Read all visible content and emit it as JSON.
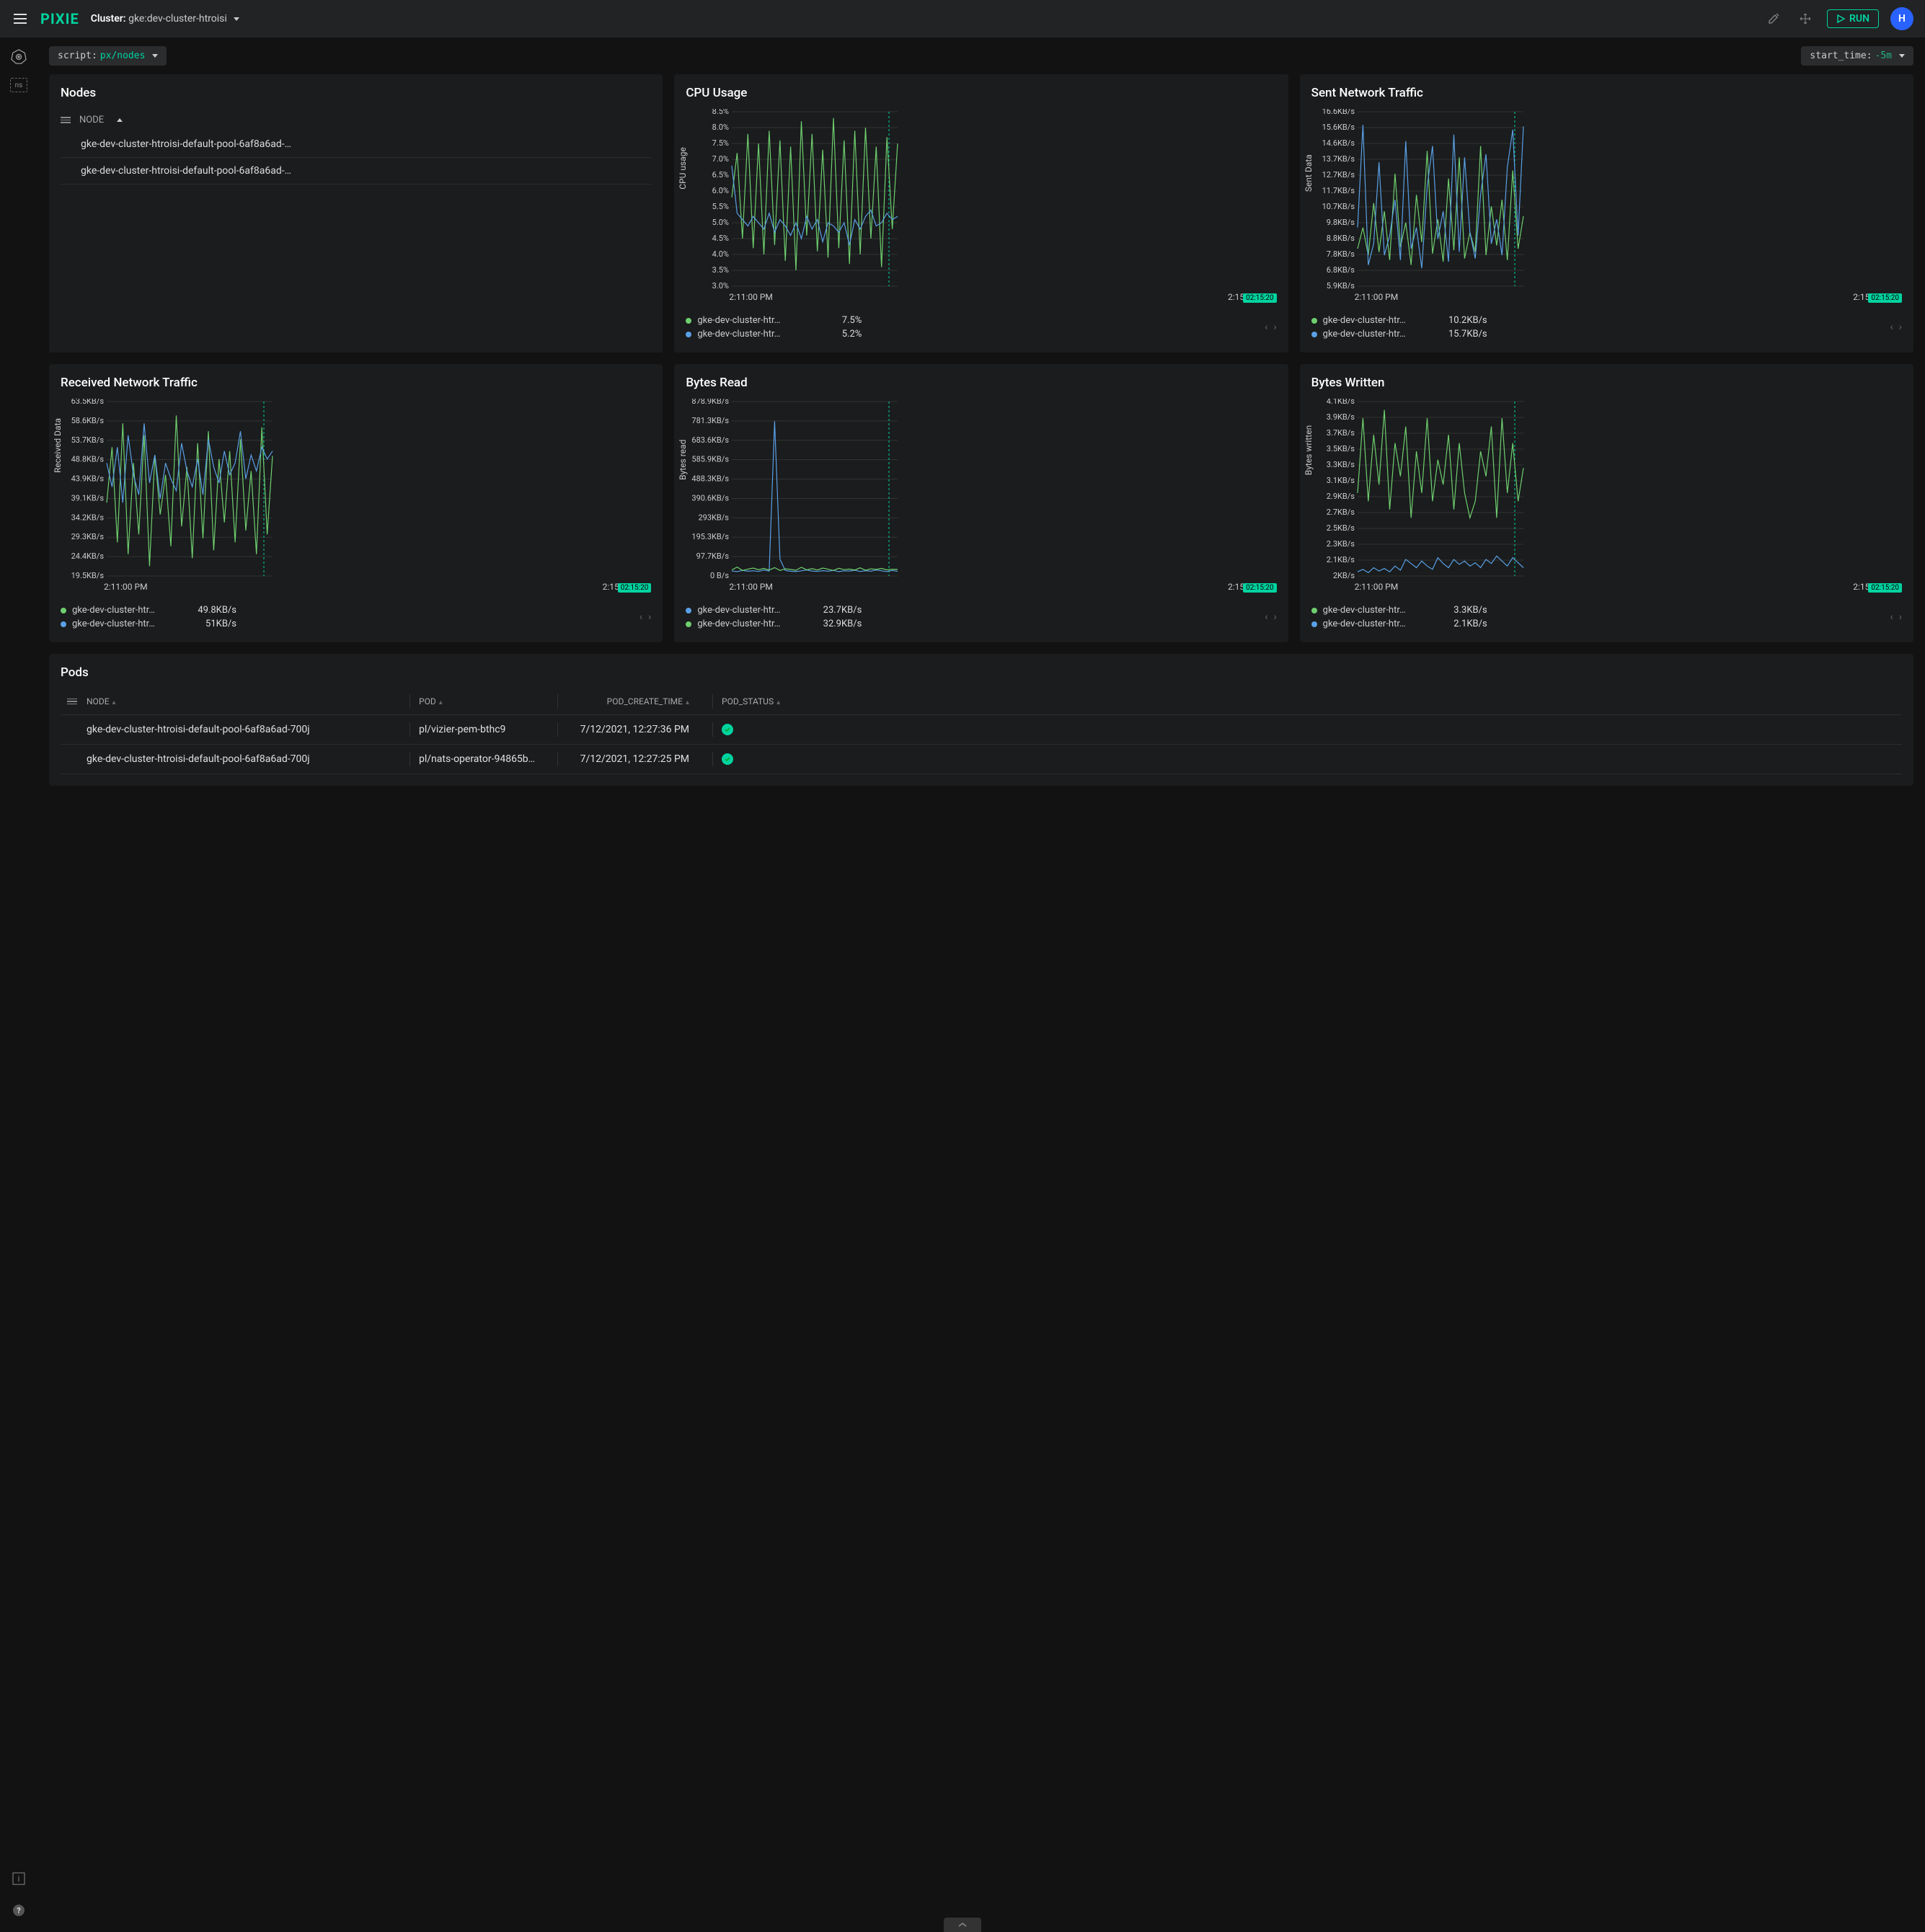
{
  "brand": {
    "logo_text": "PIXIE",
    "logo_color": "#00d3a0"
  },
  "topbar": {
    "cluster_label": "Cluster:",
    "cluster_value": "gke:dev-cluster-htroisi",
    "run_label": "RUN",
    "avatar_initial": "H"
  },
  "toolbar": {
    "script_key": "script:",
    "script_val": "px/nodes",
    "start_time_key": "start_time:",
    "start_time_val": "-5m"
  },
  "colors": {
    "green": "#6fcf6f",
    "blue": "#5aa0e6",
    "accent": "#00d3a0",
    "panel_bg": "#1a1c1d",
    "grid": "#333333"
  },
  "nodes_panel": {
    "title": "Nodes",
    "col_label": "NODE",
    "rows": [
      "gke-dev-cluster-htroisi-default-pool-6af8a6ad-…",
      "gke-dev-cluster-htroisi-default-pool-6af8a6ad-…"
    ]
  },
  "charts": [
    {
      "id": "cpu",
      "title": "CPU Usage",
      "ylabel": "CPU usage",
      "y_min": 3.0,
      "y_max": 8.5,
      "y_step": 0.5,
      "y_suffix": "%",
      "x_start": "2:11:00 PM",
      "x_end": "2:15",
      "cursor_label": "02:15:20",
      "series": [
        {
          "name": "gke-dev-cluster-htr…",
          "color": "#6fcf6f",
          "value": "7.5%",
          "points": [
            5.8,
            7.2,
            4.5,
            7.8,
            4.2,
            7.5,
            4.0,
            7.9,
            4.3,
            7.6,
            3.8,
            7.4,
            3.5,
            8.2,
            4.6,
            7.8,
            4.1,
            7.3,
            3.9,
            8.3,
            4.2,
            7.6,
            3.7,
            7.9,
            4.0,
            8.0,
            4.5,
            7.4,
            3.6,
            7.7,
            4.8,
            7.5
          ]
        },
        {
          "name": "gke-dev-cluster-htr…",
          "color": "#5aa0e6",
          "value": "5.2%",
          "points": [
            6.8,
            5.3,
            5.1,
            4.9,
            5.2,
            5.0,
            4.8,
            5.3,
            4.7,
            5.1,
            4.9,
            4.6,
            5.0,
            4.5,
            5.2,
            4.8,
            5.1,
            4.4,
            5.0,
            4.9,
            4.7,
            5.0,
            4.3,
            5.1,
            4.8,
            5.2,
            5.4,
            4.9,
            5.0,
            5.3,
            5.1,
            5.2
          ]
        }
      ]
    },
    {
      "id": "sent",
      "title": "Sent Network Traffic",
      "ylabel": "Sent Data",
      "y_min": 5.9,
      "y_max": 16.6,
      "y_step": 0.97,
      "y_ticks_explicit": [
        "16.6KB/s",
        "15.6KB/s",
        "14.6KB/s",
        "13.7KB/s",
        "12.7KB/s",
        "11.7KB/s",
        "10.7KB/s",
        "9.8KB/s",
        "8.8KB/s",
        "7.8KB/s",
        "6.8KB/s",
        "5.9KB/s"
      ],
      "x_start": "2:11:00 PM",
      "x_end": "2:15",
      "cursor_label": "02:15:20",
      "series": [
        {
          "name": "gke-dev-cluster-htr…",
          "color": "#6fcf6f",
          "value": "10.2KB/s",
          "points": [
            8.2,
            9.5,
            7.8,
            11.0,
            8.0,
            10.5,
            7.5,
            12.8,
            8.3,
            9.8,
            7.2,
            11.5,
            8.6,
            14.2,
            7.9,
            10.0,
            7.4,
            12.5,
            8.1,
            13.8,
            7.6,
            9.2,
            8.0,
            14.5,
            7.8,
            10.8,
            8.4,
            11.2,
            7.5,
            13.0,
            8.2,
            10.2
          ]
        },
        {
          "name": "gke-dev-cluster-htr…",
          "color": "#5aa0e6",
          "value": "15.7KB/s",
          "points": [
            9.5,
            15.8,
            7.2,
            8.5,
            13.5,
            7.8,
            9.0,
            11.2,
            7.5,
            14.8,
            8.2,
            9.5,
            7.0,
            12.0,
            14.5,
            8.8,
            10.5,
            7.4,
            15.2,
            8.0,
            13.8,
            9.2,
            7.6,
            11.5,
            14.0,
            8.5,
            10.0,
            7.8,
            13.2,
            15.5,
            9.0,
            15.7
          ]
        }
      ]
    },
    {
      "id": "recv",
      "title": "Received Network Traffic",
      "ylabel": "Received Data",
      "y_min": 19.5,
      "y_max": 63.5,
      "y_step": 4.9,
      "y_ticks_explicit": [
        "63.5KB/s",
        "58.6KB/s",
        "53.7KB/s",
        "48.8KB/s",
        "43.9KB/s",
        "39.1KB/s",
        "34.2KB/s",
        "29.3KB/s",
        "24.4KB/s",
        "19.5KB/s"
      ],
      "x_start": "2:11:00 PM",
      "x_end": "2:15",
      "cursor_label": "02:15:20",
      "series": [
        {
          "name": "gke-dev-cluster-htr…",
          "color": "#6fcf6f",
          "value": "49.8KB/s",
          "points": [
            38,
            52,
            28,
            58,
            25,
            48,
            30,
            55,
            22,
            50,
            35,
            45,
            27,
            60,
            32,
            47,
            24,
            53,
            29,
            56,
            26,
            49,
            33,
            51,
            28,
            54,
            31,
            46,
            25,
            57,
            30,
            49.8
          ]
        },
        {
          "name": "gke-dev-cluster-htr…",
          "color": "#5aa0e6",
          "value": "51KB/s",
          "points": [
            48,
            42,
            52,
            38,
            55,
            45,
            40,
            58,
            43,
            50,
            39,
            48,
            44,
            41,
            53,
            46,
            42,
            49,
            40,
            54,
            47,
            43,
            51,
            45,
            48,
            56,
            44,
            50,
            46,
            52,
            49,
            51
          ]
        }
      ]
    },
    {
      "id": "bread",
      "title": "Bytes Read",
      "ylabel": "Bytes read",
      "y_min": 0,
      "y_max": 878.9,
      "y_step": 97.7,
      "y_ticks_explicit": [
        "878.9KB/s",
        "781.3KB/s",
        "683.6KB/s",
        "585.9KB/s",
        "488.3KB/s",
        "390.6KB/s",
        "293KB/s",
        "195.3KB/s",
        "97.7KB/s",
        "0 B/s"
      ],
      "x_start": "2:11:00 PM",
      "x_end": "2:15",
      "cursor_label": "02:15:20",
      "series": [
        {
          "name": "gke-dev-cluster-htr…",
          "color": "#5aa0e6",
          "value": "23.7KB/s",
          "points": [
            25,
            22,
            28,
            24,
            26,
            23,
            30,
            25,
            780,
            85,
            28,
            24,
            22,
            26,
            30,
            25,
            23,
            27,
            24,
            28,
            22,
            26,
            25,
            29,
            23,
            27,
            24,
            30,
            26,
            22,
            28,
            23.7
          ]
        },
        {
          "name": "gke-dev-cluster-htr…",
          "color": "#6fcf6f",
          "value": "32.9KB/s",
          "points": [
            30,
            45,
            28,
            35,
            40,
            32,
            38,
            30,
            42,
            28,
            36,
            33,
            29,
            44,
            31,
            37,
            30,
            40,
            34,
            28,
            39,
            32,
            35,
            30,
            41,
            29,
            36,
            33,
            38,
            31,
            34,
            32.9
          ]
        }
      ]
    },
    {
      "id": "bwrite",
      "title": "Bytes Written",
      "ylabel": "Bytes written",
      "y_min": 2.0,
      "y_max": 4.1,
      "y_step": 0.19,
      "y_ticks_explicit": [
        "4.1KB/s",
        "3.9KB/s",
        "3.7KB/s",
        "3.5KB/s",
        "3.3KB/s",
        "3.1KB/s",
        "2.9KB/s",
        "2.7KB/s",
        "2.5KB/s",
        "2.3KB/s",
        "2.1KB/s",
        "2KB/s"
      ],
      "x_start": "2:11:00 PM",
      "x_end": "2:15",
      "cursor_label": "02:15:20",
      "series": [
        {
          "name": "gke-dev-cluster-htr…",
          "color": "#6fcf6f",
          "value": "3.3KB/s",
          "points": [
            3.0,
            3.9,
            2.9,
            3.7,
            3.1,
            4.0,
            2.8,
            3.6,
            3.2,
            3.8,
            2.7,
            3.5,
            3.0,
            3.9,
            2.9,
            3.4,
            3.1,
            3.7,
            2.8,
            3.6,
            3.0,
            2.7,
            2.9,
            3.5,
            3.2,
            3.8,
            2.7,
            3.9,
            3.0,
            3.6,
            2.9,
            3.3
          ]
        },
        {
          "name": "gke-dev-cluster-htr…",
          "color": "#5aa0e6",
          "value": "2.1KB/s",
          "points": [
            2.05,
            2.08,
            2.04,
            2.1,
            2.06,
            2.09,
            2.05,
            2.12,
            2.07,
            2.2,
            2.15,
            2.1,
            2.18,
            2.12,
            2.08,
            2.22,
            2.15,
            2.1,
            2.2,
            2.14,
            2.18,
            2.12,
            2.16,
            2.1,
            2.2,
            2.15,
            2.24,
            2.18,
            2.12,
            2.22,
            2.16,
            2.1
          ]
        }
      ]
    }
  ],
  "pods_panel": {
    "title": "Pods",
    "columns": [
      "NODE",
      "POD",
      "POD_CREATE_TIME",
      "POD_STATUS"
    ],
    "rows": [
      {
        "node": "gke-dev-cluster-htroisi-default-pool-6af8a6ad-700j",
        "pod": "pl/vizier-pem-bthc9",
        "time": "7/12/2021, 12:27:36 PM",
        "status": "ok"
      },
      {
        "node": "gke-dev-cluster-htroisi-default-pool-6af8a6ad-700j",
        "pod": "pl/nats-operator-94865b…",
        "time": "7/12/2021, 12:27:25 PM",
        "status": "ok"
      }
    ]
  }
}
